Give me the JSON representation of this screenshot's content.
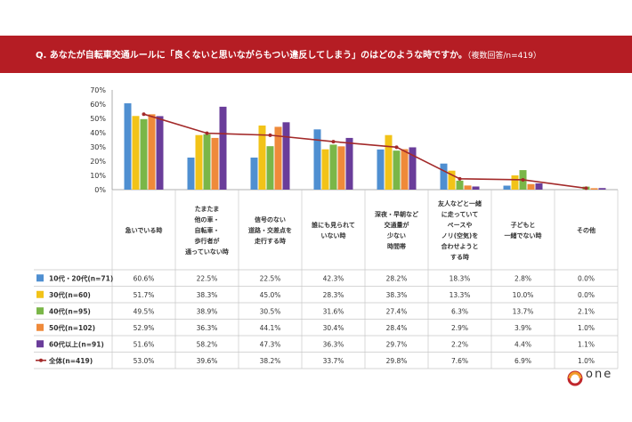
{
  "header": {
    "question": "Q. あなたが自転車交通ルールに「良くないと思いながらもつい違反してしまう」のはどのような時ですか。",
    "note": "（複数回答/n=419）"
  },
  "logo": {
    "text": "one",
    "subtext": ""
  },
  "chart_data": {
    "type": "bar",
    "ylim": [
      0,
      70
    ],
    "yticks": [
      "0%",
      "10%",
      "20%",
      "30%",
      "40%",
      "50%",
      "60%",
      "70%"
    ],
    "categories": [
      "急いでいる時",
      "たまたま\n他の車・\n自転車・\n歩行者が\n通っていない時",
      "信号のない\n道路・交差点を\n走行する時",
      "誰にも見られて\nいない時",
      "深夜・早朝など\n交通量が\n少ない\n時間帯",
      "友人などと一緒\nに走っていて\nペースや\nノリ(空気)を\n合わせようと\nする時",
      "子どもと\n一緒でない時",
      "その他"
    ],
    "series": [
      {
        "name": "10代・20代(n=71)",
        "color": "#4f8fd1",
        "values": [
          60.6,
          22.5,
          22.5,
          42.3,
          28.2,
          18.3,
          2.8,
          0.0
        ],
        "labels": [
          "60.6%",
          "22.5%",
          "22.5%",
          "42.3%",
          "28.2%",
          "18.3%",
          "2.8%",
          "0.0%"
        ]
      },
      {
        "name": "30代(n=60)",
        "color": "#f2c318",
        "values": [
          51.7,
          38.3,
          45.0,
          28.3,
          38.3,
          13.3,
          10.0,
          0.0
        ],
        "labels": [
          "51.7%",
          "38.3%",
          "45.0%",
          "28.3%",
          "38.3%",
          "13.3%",
          "10.0%",
          "0.0%"
        ]
      },
      {
        "name": "40代(n=95)",
        "color": "#7ab648",
        "values": [
          49.5,
          38.9,
          30.5,
          31.6,
          27.4,
          6.3,
          13.7,
          2.1
        ],
        "labels": [
          "49.5%",
          "38.9%",
          "30.5%",
          "31.6%",
          "27.4%",
          "6.3%",
          "13.7%",
          "2.1%"
        ]
      },
      {
        "name": "50代(n=102)",
        "color": "#ef8a3a",
        "values": [
          52.9,
          36.3,
          44.1,
          30.4,
          28.4,
          2.9,
          3.9,
          1.0
        ],
        "labels": [
          "52.9%",
          "36.3%",
          "44.1%",
          "30.4%",
          "28.4%",
          "2.9%",
          "3.9%",
          "1.0%"
        ]
      },
      {
        "name": "60代以上(n=91)",
        "color": "#6a3d9a",
        "values": [
          51.6,
          58.2,
          47.3,
          36.3,
          29.7,
          2.2,
          4.4,
          1.1
        ],
        "labels": [
          "51.6%",
          "58.2%",
          "47.3%",
          "36.3%",
          "29.7%",
          "2.2%",
          "4.4%",
          "1.1%"
        ]
      },
      {
        "name": "全体(n=419)",
        "color": "#a32a2a",
        "kind": "line",
        "values": [
          53.0,
          39.6,
          38.2,
          33.7,
          29.8,
          7.6,
          6.9,
          1.0
        ],
        "labels": [
          "53.0%",
          "39.6%",
          "38.2%",
          "33.7%",
          "29.8%",
          "7.6%",
          "6.9%",
          "1.0%"
        ]
      }
    ],
    "grid": false,
    "legend": "table-left"
  }
}
